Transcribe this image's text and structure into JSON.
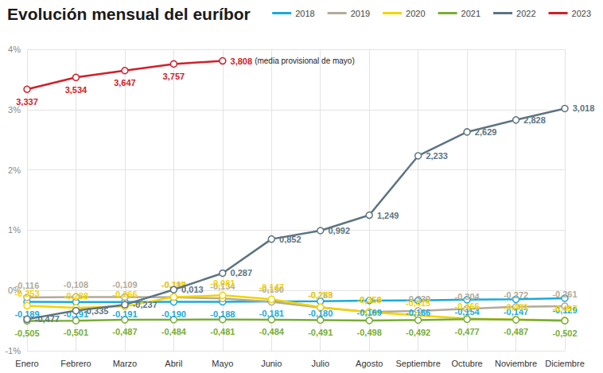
{
  "chart_data": {
    "type": "line",
    "title": "Evolución mensual del euríbor",
    "categories": [
      "Enero",
      "Febrero",
      "Marzo",
      "Abril",
      "Mayo",
      "Junio",
      "Julio",
      "Agosto",
      "Septiembre",
      "Octubre",
      "Noviembre",
      "Diciembre"
    ],
    "series": [
      {
        "name": "2018",
        "color": "#1ba9dd",
        "values": [
          -0.189,
          -0.191,
          -0.191,
          -0.19,
          -0.188,
          -0.181,
          -0.18,
          -0.169,
          -0.166,
          -0.154,
          -0.147,
          -0.129
        ],
        "value_labels": [
          "-0,189",
          "-0,191",
          "-0,191",
          "-0,190",
          "-0,188",
          "-0,181",
          "-0,180",
          "-0,169",
          "-0,166",
          "-0,154",
          "-0,147",
          "-0,129"
        ]
      },
      {
        "name": "2019",
        "color": "#b3ab97",
        "values": [
          -0.116,
          -0.108,
          -0.109,
          -0.112,
          -0.134,
          -0.19,
          -0.283,
          -0.356,
          -0.339,
          -0.304,
          -0.272,
          -0.261
        ],
        "value_labels": [
          "-0,116",
          "-0,108",
          "-0,109",
          "-0,112",
          "-0,134",
          "-0,190",
          "-0,283",
          "-0,356",
          "-0,339",
          "-0,304",
          "-0,272",
          "-0,261"
        ]
      },
      {
        "name": "2020",
        "color": "#f2d400",
        "values": [
          -0.253,
          -0.288,
          -0.266,
          -0.108,
          -0.081,
          -0.147,
          -0.279,
          -0.359,
          -0.415,
          -0.466,
          -0.481,
          -0.497
        ],
        "value_labels": [
          "-0,253",
          "-0,288",
          "-0,266",
          "-0,108",
          "-0,081",
          "-0,147",
          "-0,279",
          "-0,359",
          "-0,415",
          "-0,466",
          "-0,481",
          "-0,497"
        ]
      },
      {
        "name": "2021",
        "color": "#78ad35",
        "values": [
          -0.505,
          -0.501,
          -0.487,
          -0.484,
          -0.481,
          -0.484,
          -0.491,
          -0.498,
          -0.492,
          -0.477,
          -0.487,
          -0.502
        ],
        "value_labels": [
          "-0,505",
          "-0,501",
          "-0,487",
          "-0,484",
          "-0,481",
          "-0,484",
          "-0,491",
          "-0,498",
          "-0,492",
          "-0,477",
          "-0,487",
          "-0,502"
        ]
      },
      {
        "name": "2022",
        "color": "#5d7482",
        "values": [
          -0.477,
          -0.335,
          -0.237,
          0.013,
          0.287,
          0.852,
          0.992,
          1.249,
          2.233,
          2.629,
          2.828,
          3.018
        ],
        "value_labels": [
          "-0,477",
          "-0,335",
          "-0,237",
          "0,013",
          "0,287",
          "0,852",
          "0,992",
          "1,249",
          "2,233",
          "2,629",
          "2,828",
          "3,018"
        ]
      },
      {
        "name": "2023",
        "color": "#d0202a",
        "values": [
          3.337,
          3.534,
          3.647,
          3.757,
          3.808,
          null,
          null,
          null,
          null,
          null,
          null,
          null
        ],
        "value_labels": [
          "3,337",
          "3,534",
          "3,647",
          "3,757",
          "3,808",
          null,
          null,
          null,
          null,
          null,
          null,
          null
        ]
      }
    ],
    "annotations": [
      {
        "series": "2023",
        "category": "Mayo",
        "text": "(media provisional de mayo)"
      }
    ],
    "ylim": [
      -1,
      4
    ],
    "yticks": [
      {
        "value": -1,
        "label": "-1%"
      },
      {
        "value": 0,
        "label": "0%"
      },
      {
        "value": 1,
        "label": "1%"
      },
      {
        "value": 2,
        "label": "2%"
      },
      {
        "value": 3,
        "label": "3%"
      },
      {
        "value": 4,
        "label": "4%"
      }
    ],
    "grid": true,
    "legend": "top right",
    "data_labels": true,
    "marker": "circle"
  }
}
